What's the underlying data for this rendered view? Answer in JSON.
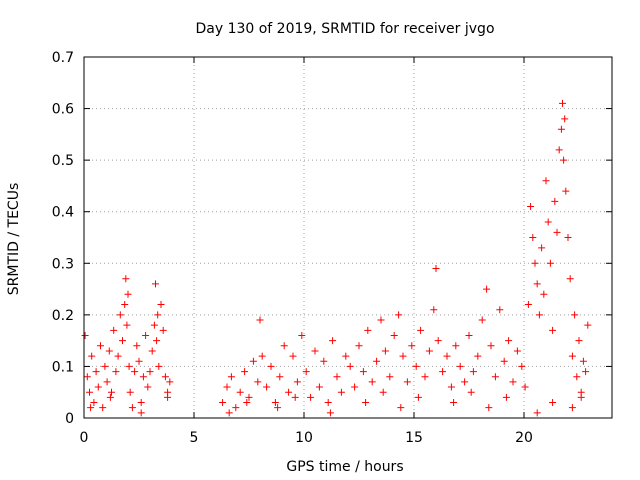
{
  "chart_data": {
    "type": "scatter",
    "title": "Day 130 of 2019, SRMTID for receiver jvgo",
    "xlabel": "GPS time / hours",
    "ylabel": "SRMTID / TECUs",
    "xlim": [
      0,
      24
    ],
    "ylim": [
      0,
      0.7
    ],
    "xticks": [
      0,
      5,
      10,
      15,
      20
    ],
    "xtick_labels": [
      "0",
      "5",
      "10",
      "15",
      "20"
    ],
    "yticks": [
      0,
      0.1,
      0.2,
      0.3,
      0.4,
      0.5,
      0.6,
      0.7
    ],
    "ytick_labels": [
      "0",
      "0.1",
      "0.2",
      "0.3",
      "0.4",
      "0.5",
      "0.6",
      "0.7"
    ],
    "grid": true,
    "marker": "+",
    "color": "#ff0000",
    "series": [
      {
        "name": "SRMTID",
        "x": [
          0.05,
          0.15,
          0.25,
          0.35,
          0.45,
          0.55,
          0.65,
          0.75,
          0.85,
          0.95,
          1.05,
          1.15,
          1.25,
          1.35,
          1.45,
          1.55,
          1.65,
          1.75,
          1.85,
          1.9,
          1.95,
          2.0,
          2.05,
          2.1,
          2.2,
          2.3,
          2.4,
          2.5,
          2.6,
          2.7,
          2.8,
          2.9,
          3.0,
          3.1,
          3.2,
          3.25,
          3.3,
          3.35,
          3.4,
          3.5,
          3.6,
          3.7,
          3.8,
          3.9,
          6.3,
          6.5,
          6.7,
          6.9,
          7.1,
          7.3,
          7.5,
          7.7,
          7.9,
          8.0,
          8.1,
          8.3,
          8.5,
          8.7,
          8.9,
          9.1,
          9.3,
          9.5,
          9.7,
          9.9,
          10.1,
          10.3,
          10.5,
          10.7,
          10.9,
          11.1,
          11.3,
          11.5,
          11.7,
          11.9,
          12.1,
          12.3,
          12.5,
          12.7,
          12.9,
          13.1,
          13.3,
          13.5,
          13.7,
          13.9,
          14.1,
          14.3,
          14.5,
          14.7,
          14.9,
          15.1,
          15.3,
          15.5,
          15.7,
          15.9,
          16.0,
          16.1,
          16.3,
          16.5,
          16.7,
          16.9,
          17.1,
          17.3,
          17.5,
          17.7,
          17.9,
          18.1,
          18.3,
          18.5,
          18.7,
          18.9,
          19.1,
          19.3,
          19.5,
          19.7,
          19.9,
          20.05,
          20.2,
          20.3,
          20.4,
          20.5,
          20.6,
          20.7,
          20.8,
          20.9,
          21.0,
          21.1,
          21.2,
          21.3,
          21.4,
          21.5,
          21.6,
          21.7,
          21.75,
          21.8,
          21.85,
          21.9,
          22.0,
          22.1,
          22.2,
          22.3,
          22.4,
          22.5,
          22.6,
          22.7,
          22.8,
          22.9,
          0.3,
          1.2,
          2.6,
          3.8,
          6.6,
          7.4,
          8.8,
          9.6,
          11.2,
          12.8,
          13.6,
          14.4,
          15.2,
          16.8,
          17.6,
          18.4,
          19.2,
          20.6,
          21.3,
          22.2,
          22.6
        ],
        "y": [
          0.16,
          0.08,
          0.05,
          0.12,
          0.03,
          0.09,
          0.06,
          0.14,
          0.02,
          0.1,
          0.07,
          0.13,
          0.05,
          0.17,
          0.09,
          0.12,
          0.2,
          0.15,
          0.22,
          0.27,
          0.18,
          0.24,
          0.1,
          0.05,
          0.02,
          0.09,
          0.14,
          0.11,
          0.03,
          0.08,
          0.16,
          0.06,
          0.09,
          0.13,
          0.18,
          0.26,
          0.15,
          0.2,
          0.1,
          0.22,
          0.17,
          0.08,
          0.04,
          0.07,
          0.03,
          0.06,
          0.08,
          0.02,
          0.05,
          0.09,
          0.04,
          0.11,
          0.07,
          0.19,
          0.12,
          0.06,
          0.1,
          0.03,
          0.08,
          0.14,
          0.05,
          0.12,
          0.07,
          0.16,
          0.09,
          0.04,
          0.13,
          0.06,
          0.11,
          0.03,
          0.15,
          0.08,
          0.05,
          0.12,
          0.1,
          0.06,
          0.14,
          0.09,
          0.17,
          0.07,
          0.11,
          0.19,
          0.13,
          0.08,
          0.16,
          0.2,
          0.12,
          0.07,
          0.14,
          0.1,
          0.17,
          0.08,
          0.13,
          0.21,
          0.29,
          0.15,
          0.09,
          0.12,
          0.06,
          0.14,
          0.1,
          0.07,
          0.16,
          0.09,
          0.12,
          0.19,
          0.25,
          0.14,
          0.08,
          0.21,
          0.11,
          0.15,
          0.07,
          0.13,
          0.1,
          0.06,
          0.22,
          0.41,
          0.35,
          0.3,
          0.26,
          0.2,
          0.33,
          0.24,
          0.46,
          0.38,
          0.3,
          0.17,
          0.42,
          0.36,
          0.52,
          0.56,
          0.61,
          0.5,
          0.58,
          0.44,
          0.35,
          0.27,
          0.12,
          0.2,
          0.08,
          0.15,
          0.05,
          0.11,
          0.09,
          0.18,
          0.02,
          0.04,
          0.01,
          0.05,
          0.01,
          0.03,
          0.02,
          0.04,
          0.01,
          0.03,
          0.05,
          0.02,
          0.04,
          0.03,
          0.05,
          0.02,
          0.04,
          0.01,
          0.03,
          0.02,
          0.04
        ]
      }
    ]
  }
}
